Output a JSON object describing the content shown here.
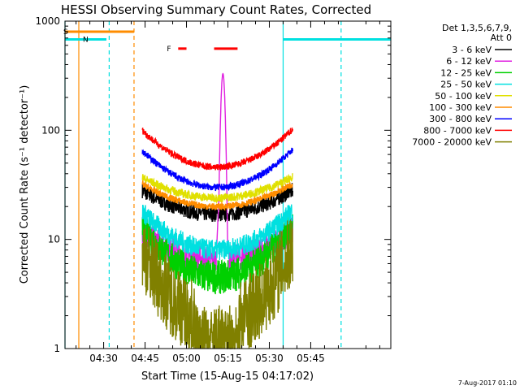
{
  "chart_data": {
    "type": "line",
    "title": "HESSI Observing Summary Count Rates, Corrected",
    "xlabel": "Start Time (15-Aug-15 04:17:02)",
    "ylabel": "Corrected Count Rate (s⁻¹ detector⁻¹)",
    "yscale": "log",
    "ylim": [
      1,
      1000
    ],
    "xlim_minutes": [
      256,
      374
    ],
    "x_ticks": [
      {
        "m": 270,
        "label": "04:30"
      },
      {
        "m": 285,
        "label": "04:45"
      },
      {
        "m": 300,
        "label": "05:00"
      },
      {
        "m": 315,
        "label": "05:15"
      },
      {
        "m": 330,
        "label": "05:30"
      },
      {
        "m": 345,
        "label": "05:45"
      }
    ],
    "y_ticks": [
      {
        "v": 1,
        "label": "1"
      },
      {
        "v": 10,
        "label": "10"
      },
      {
        "v": 100,
        "label": "100"
      },
      {
        "v": 1000,
        "label": "1000"
      }
    ],
    "legend_header": [
      "Det 1,3,5,6,7,9,",
      "Att 0"
    ],
    "footer": "7-Aug-2017 01:10",
    "data_start_min": 284,
    "data_end_min": 338.5,
    "series": [
      {
        "name": "3 - 6 keV",
        "color": "#000000",
        "start": 28,
        "min": 17,
        "noise": 0.09
      },
      {
        "name": "6 - 12 keV",
        "color": "#e020e0",
        "start": 12,
        "min": 6.5,
        "noise": 0.16,
        "peak": 330
      },
      {
        "name": "12 - 25 keV",
        "color": "#00d000",
        "start": 13,
        "min": 4.5,
        "noise": 0.2
      },
      {
        "name": "25 - 50 keV",
        "color": "#00e0e0",
        "start": 18,
        "min": 8,
        "noise": 0.12
      },
      {
        "name": "50 - 100 keV",
        "color": "#e0e000",
        "start": 37,
        "min": 24,
        "noise": 0.05
      },
      {
        "name": "100 - 300 keV",
        "color": "#ff8c00",
        "start": 32,
        "min": 20,
        "noise": 0.04
      },
      {
        "name": "300 - 800 keV",
        "color": "#0000ff",
        "start": 65,
        "min": 30,
        "noise": 0.04
      },
      {
        "name": "800 - 7000 keV",
        "color": "#ff0000",
        "start": 100,
        "min": 46,
        "noise": 0.04
      },
      {
        "name": "7000 - 20000 keV",
        "color": "#808000",
        "start": 8,
        "min": 1.6,
        "noise": 0.45
      }
    ],
    "flags": [
      {
        "label": "S",
        "color": "#ff8c00",
        "level": 800,
        "segments": [
          [
            256,
            281
          ]
        ]
      },
      {
        "label": "N",
        "color": "#00e0e0",
        "level": 680,
        "segments": [
          [
            256,
            271
          ],
          [
            335,
            374
          ]
        ]
      },
      {
        "label": "F",
        "color": "#ff0000",
        "level": 560,
        "segments": [
          [
            297,
            300
          ],
          [
            310,
            318.5
          ]
        ]
      }
    ],
    "vlines": [
      {
        "m": 261,
        "color": "#ff8c00",
        "style": "solid"
      },
      {
        "m": 281,
        "color": "#ff8c00",
        "style": "dash"
      },
      {
        "m": 256,
        "color": "#00e0e0",
        "style": "solid"
      },
      {
        "m": 335,
        "color": "#00e0e0",
        "style": "solid"
      },
      {
        "m": 272,
        "color": "#00e0e0",
        "style": "dash"
      },
      {
        "m": 356,
        "color": "#00e0e0",
        "style": "dash"
      }
    ]
  }
}
